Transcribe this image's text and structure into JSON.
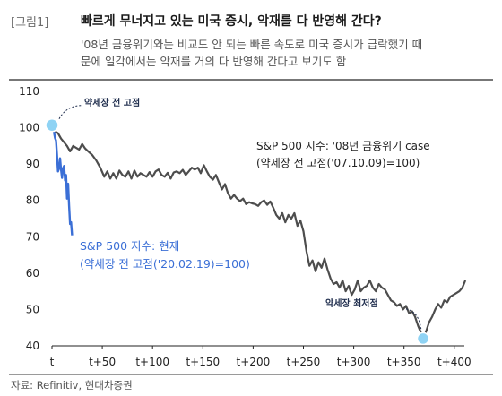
{
  "figure_label": "[그림1]",
  "title": "빠르게 무너지고 있는 미국 증시, 악재를 다 반영해 간다?",
  "subtitle_lines": [
    "'08년 금융위기와는 비교도 안 되는 빠른 속도로 미국 증시가 급락했기 때",
    "문에 일각에서는 악재를 거의 다 반영해 간다고 보기도 함"
  ],
  "source": "자료: Refinitiv, 현대차증권",
  "colors": {
    "gfc_series": "#4d4d4d",
    "current_series": "#3b6fd6",
    "marker": "#8fd3f4",
    "callout": "#1f2d4d"
  },
  "chart_data": {
    "type": "line",
    "xlim": [
      0,
      410
    ],
    "ylim": [
      40,
      110
    ],
    "x_tick_labels": [
      "t",
      "t+50",
      "t+100",
      "t+150",
      "t+200",
      "t+250",
      "t+300",
      "t+350",
      "t+400"
    ],
    "x_tick_values": [
      0,
      50,
      100,
      150,
      200,
      250,
      300,
      350,
      400
    ],
    "y_ticks": [
      40,
      50,
      60,
      70,
      80,
      90,
      100,
      110
    ],
    "series": [
      {
        "name": "S&P 500 지수: '08년 금융위기 case",
        "sub_label": "(약세장 전 고점('07.10.09)=100)",
        "key": "gfc",
        "points": [
          [
            0,
            100
          ],
          [
            3,
            99
          ],
          [
            6,
            98.5
          ],
          [
            9,
            97
          ],
          [
            12,
            96
          ],
          [
            15,
            95
          ],
          [
            18,
            93.5
          ],
          [
            21,
            95
          ],
          [
            24,
            94.5
          ],
          [
            27,
            94
          ],
          [
            30,
            95.5
          ],
          [
            33,
            94.3
          ],
          [
            36,
            93.5
          ],
          [
            40,
            92.5
          ],
          [
            44,
            91
          ],
          [
            48,
            89
          ],
          [
            52,
            86.5
          ],
          [
            55,
            88
          ],
          [
            58,
            86
          ],
          [
            61,
            87.5
          ],
          [
            64,
            86
          ],
          [
            67,
            88.2
          ],
          [
            70,
            87
          ],
          [
            73,
            86.5
          ],
          [
            76,
            88
          ],
          [
            79,
            86
          ],
          [
            82,
            88.2
          ],
          [
            85,
            86.5
          ],
          [
            88,
            87.5
          ],
          [
            91,
            87
          ],
          [
            94,
            86.5
          ],
          [
            97,
            87.8
          ],
          [
            100,
            86.5
          ],
          [
            103,
            88
          ],
          [
            106,
            88.5
          ],
          [
            109,
            87
          ],
          [
            112,
            86.5
          ],
          [
            115,
            87.6
          ],
          [
            118,
            86
          ],
          [
            121,
            87.7
          ],
          [
            124,
            88
          ],
          [
            127,
            87.5
          ],
          [
            130,
            88.4
          ],
          [
            133,
            87
          ],
          [
            136,
            88
          ],
          [
            139,
            89
          ],
          [
            142,
            88.5
          ],
          [
            145,
            89
          ],
          [
            148,
            87.5
          ],
          [
            151,
            89.7
          ],
          [
            154,
            88
          ],
          [
            157,
            86.5
          ],
          [
            160,
            85.7
          ],
          [
            163,
            87
          ],
          [
            166,
            85
          ],
          [
            169,
            83
          ],
          [
            172,
            84.5
          ],
          [
            175,
            82
          ],
          [
            178,
            80.5
          ],
          [
            181,
            81.5
          ],
          [
            184,
            80.5
          ],
          [
            187,
            79.8
          ],
          [
            190,
            80.5
          ],
          [
            193,
            79
          ],
          [
            196,
            79.5
          ],
          [
            199,
            79.2
          ],
          [
            202,
            79
          ],
          [
            205,
            78.5
          ],
          [
            208,
            79.5
          ],
          [
            211,
            80
          ],
          [
            214,
            78.8
          ],
          [
            217,
            79.7
          ],
          [
            220,
            78
          ],
          [
            223,
            76
          ],
          [
            226,
            75
          ],
          [
            229,
            76.5
          ],
          [
            232,
            74
          ],
          [
            235,
            76
          ],
          [
            238,
            75
          ],
          [
            241,
            76.5
          ],
          [
            244,
            73
          ],
          [
            247,
            74.5
          ],
          [
            250,
            71.5
          ],
          [
            253,
            66
          ],
          [
            256,
            62
          ],
          [
            259,
            63.5
          ],
          [
            262,
            60.5
          ],
          [
            265,
            63
          ],
          [
            268,
            61.5
          ],
          [
            271,
            64
          ],
          [
            274,
            61
          ],
          [
            277,
            58.5
          ],
          [
            280,
            57
          ],
          [
            283,
            57.5
          ],
          [
            286,
            56
          ],
          [
            289,
            58
          ],
          [
            292,
            55
          ],
          [
            295,
            56.5
          ],
          [
            298,
            54
          ],
          [
            301,
            55.5
          ],
          [
            304,
            58
          ],
          [
            307,
            55
          ],
          [
            310,
            56
          ],
          [
            313,
            56.5
          ],
          [
            316,
            58
          ],
          [
            319,
            56
          ],
          [
            322,
            55
          ],
          [
            325,
            57
          ],
          [
            328,
            56
          ],
          [
            331,
            55.5
          ],
          [
            334,
            54
          ],
          [
            337,
            52.5
          ],
          [
            340,
            52
          ],
          [
            343,
            51
          ],
          [
            346,
            51.5
          ],
          [
            349,
            50
          ],
          [
            352,
            51
          ],
          [
            355,
            49
          ],
          [
            358,
            49.5
          ],
          [
            361,
            48
          ],
          [
            364,
            45.5
          ],
          [
            367,
            43.5
          ],
          [
            369,
            42
          ],
          [
            372,
            44
          ],
          [
            375,
            46.5
          ],
          [
            378,
            48
          ],
          [
            381,
            50
          ],
          [
            384,
            51.5
          ],
          [
            387,
            50.5
          ],
          [
            390,
            52.5
          ],
          [
            393,
            52
          ],
          [
            396,
            53.5
          ],
          [
            399,
            54
          ],
          [
            402,
            54.5
          ],
          [
            405,
            55
          ],
          [
            408,
            56
          ],
          [
            411,
            58
          ]
        ]
      },
      {
        "name": "S&P 500 지수: 현재",
        "sub_label": "(약세장 전 고점('20.02.19)=100)",
        "key": "current",
        "points": [
          [
            0,
            100
          ],
          [
            1,
            99.8
          ],
          [
            2,
            98.8
          ],
          [
            3,
            97.2
          ],
          [
            4,
            96.5
          ],
          [
            5,
            92.5
          ],
          [
            6,
            88
          ],
          [
            7,
            88.8
          ],
          [
            8,
            91.6
          ],
          [
            9,
            88.5
          ],
          [
            10,
            86.2
          ],
          [
            11,
            88.8
          ],
          [
            12,
            89.5
          ],
          [
            13,
            85.5
          ],
          [
            14,
            87
          ],
          [
            15,
            80.5
          ],
          [
            16,
            84.6
          ],
          [
            17,
            78.5
          ],
          [
            18,
            73.5
          ],
          [
            19,
            74
          ],
          [
            20,
            70.4
          ]
        ]
      }
    ],
    "annotations": [
      {
        "text": "약세장 전 고점",
        "x": 0,
        "y": 100.7
      },
      {
        "text": "약세장 최저점",
        "x": 369,
        "y": 42
      }
    ]
  }
}
